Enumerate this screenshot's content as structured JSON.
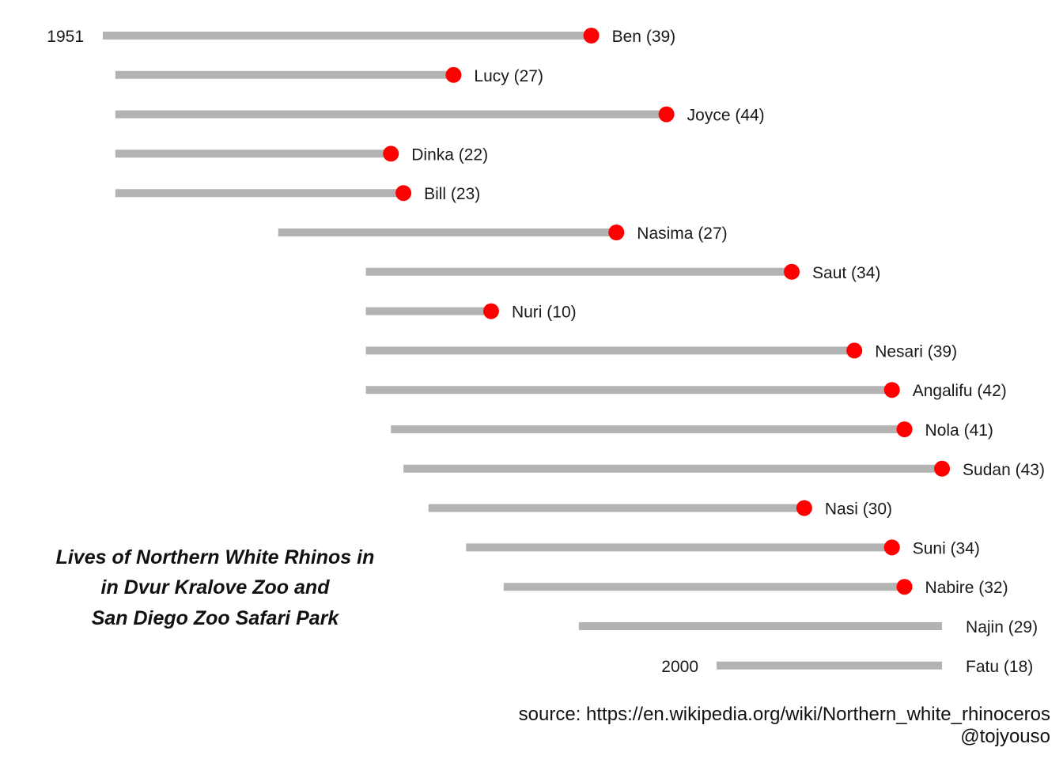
{
  "chart_data": {
    "type": "dumbbell",
    "title_lines": [
      "Lives of Northern White Rhinos in",
      "in Dvur Kralove Zoo and",
      "San Diego Zoo Safari Park"
    ],
    "xlim": [
      1951,
      2018
    ],
    "start_label": "1951",
    "end_label": "2000",
    "colors": {
      "bar": "#b3b3b3",
      "death": "#ff0000"
    },
    "rhinos": [
      {
        "name": "Ben (39)",
        "born": 1951,
        "end": 1990,
        "died": true
      },
      {
        "name": "Lucy (27)",
        "born": 1952,
        "end": 1979,
        "died": true
      },
      {
        "name": "Joyce (44)",
        "born": 1952,
        "end": 1996,
        "died": true
      },
      {
        "name": "Dinka (22)",
        "born": 1952,
        "end": 1974,
        "died": true
      },
      {
        "name": "Bill (23)",
        "born": 1952,
        "end": 1975,
        "died": true
      },
      {
        "name": "Nasima (27)",
        "born": 1965,
        "end": 1992,
        "died": true
      },
      {
        "name": "Saut (34)",
        "born": 1972,
        "end": 2006,
        "died": true
      },
      {
        "name": "Nuri (10)",
        "born": 1972,
        "end": 1982,
        "died": true
      },
      {
        "name": "Nesari (39)",
        "born": 1972,
        "end": 2011,
        "died": true
      },
      {
        "name": "Angalifu (42)",
        "born": 1972,
        "end": 2014,
        "died": true
      },
      {
        "name": "Nola (41)",
        "born": 1974,
        "end": 2015,
        "died": true
      },
      {
        "name": "Sudan (43)",
        "born": 1975,
        "end": 2018,
        "died": true
      },
      {
        "name": "Nasi (30)",
        "born": 1977,
        "end": 2007,
        "died": true
      },
      {
        "name": "Suni (34)",
        "born": 1980,
        "end": 2014,
        "died": true
      },
      {
        "name": "Nabire (32)",
        "born": 1983,
        "end": 2015,
        "died": true
      },
      {
        "name": "Najin (29)",
        "born": 1989,
        "end": 2018,
        "died": false
      },
      {
        "name": "Fatu (18)",
        "born": 2000,
        "end": 2018,
        "died": false
      }
    ]
  },
  "source": "source: https://en.wikipedia.org/wiki/Northern_white_rhinoceros",
  "credit": "@tojyouso"
}
